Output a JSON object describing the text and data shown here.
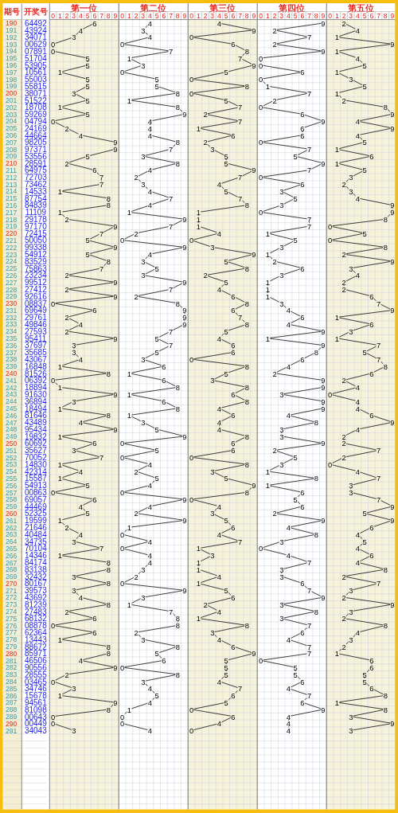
{
  "chart_data": [
    {
      "type": "line",
      "title": "第一位",
      "ylabel": "期号",
      "y2label": "开奖号",
      "orientation": "horizontal",
      "color": "#000000",
      "grid": true,
      "data_labels": true,
      "xlim": [
        -0.5,
        9.5
      ],
      "xticks": [
        0,
        1,
        2,
        3,
        4,
        5,
        6,
        7,
        8,
        9
      ],
      "categories": [
        "190",
        "191",
        "192",
        "193",
        "194",
        "195",
        "196",
        "197",
        "198",
        "199",
        "200",
        "201",
        "202",
        "203",
        "204",
        "205",
        "206",
        "207",
        "208",
        "209",
        "210",
        "211",
        "212",
        "213",
        "214",
        "215",
        "216",
        "217",
        "218",
        "219",
        "220",
        "221",
        "222",
        "223",
        "224",
        "225",
        "226",
        "227",
        "228",
        "229",
        "230",
        "231",
        "232",
        "233",
        "234",
        "235",
        "236",
        "237",
        "238",
        "239",
        "240",
        "241",
        "242",
        "243",
        "244",
        "245",
        "246",
        "247",
        "248",
        "249",
        "250",
        "251",
        "252",
        "253",
        "254",
        "255",
        "256",
        "257",
        "258",
        "259",
        "260",
        "261",
        "262",
        "263",
        "264",
        "265",
        "266",
        "267",
        "268",
        "269",
        "270",
        "271",
        "272",
        "273",
        "274",
        "275",
        "276",
        "277",
        "278",
        "279",
        "280",
        "281",
        "282",
        "283",
        "284",
        "285",
        "286",
        "287",
        "288",
        "289",
        "290",
        "291"
      ],
      "y2_categories": [
        "64492",
        "43924",
        "34071",
        "00629",
        "07891",
        "51704",
        "53905",
        "10561",
        "55003",
        "55815",
        "38071",
        "51522",
        "18708",
        "59269",
        "04794",
        "24169",
        "44664",
        "98205",
        "97371",
        "53556",
        "28591",
        "64975",
        "72703",
        "73462",
        "14533",
        "87754",
        "84839",
        "11109",
        "29178",
        "97170",
        "72415",
        "50050",
        "99338",
        "54912",
        "83529",
        "75863",
        "23234",
        "99512",
        "27412",
        "92616",
        "08837",
        "69649",
        "29761",
        "49846",
        "27593",
        "95411",
        "37697",
        "35685",
        "43067",
        "16848",
        "81526",
        "06392",
        "18894",
        "91630",
        "36894",
        "18494",
        "81646",
        "43489",
        "95434",
        "19832",
        "60692",
        "35627",
        "70052",
        "14830",
        "42314",
        "15587",
        "54913",
        "00863",
        "69057",
        "44469",
        "52325",
        "19599",
        "21646",
        "40484",
        "34735",
        "70104",
        "14346",
        "84174",
        "83138",
        "32432",
        "80167",
        "39573",
        "43692",
        "81239",
        "27483",
        "68132",
        "08878",
        "62364",
        "13443",
        "88672",
        "85971",
        "46506",
        "90556",
        "28555",
        "03465",
        "34746",
        "15678",
        "94561",
        "81098",
        "00643",
        "00449",
        "34043"
      ],
      "values": [
        6,
        4,
        3,
        0,
        0,
        5,
        5,
        1,
        5,
        5,
        3,
        5,
        1,
        5,
        0,
        2,
        4,
        9,
        9,
        5,
        2,
        6,
        7,
        7,
        1,
        8,
        8,
        1,
        2,
        9,
        7,
        5,
        9,
        5,
        8,
        7,
        2,
        9,
        2,
        9,
        0,
        6,
        2,
        4,
        2,
        9,
        3,
        3,
        4,
        1,
        8,
        0,
        1,
        9,
        3,
        1,
        8,
        4,
        9,
        1,
        6,
        3,
        7,
        1,
        4,
        1,
        5,
        0,
        6,
        4,
        5,
        1,
        2,
        4,
        3,
        7,
        1,
        8,
        8,
        3,
        8,
        3,
        4,
        8,
        2,
        6,
        0,
        6,
        1,
        8,
        8,
        4,
        9,
        2,
        0,
        3,
        1,
        9,
        8,
        0,
        0,
        3
      ]
    },
    {
      "type": "line",
      "title": "第二位",
      "orientation": "horizontal",
      "color": "#000000",
      "grid": true,
      "data_labels": true,
      "tick_labels": "x",
      "xlim": [
        -0.5,
        9.5
      ],
      "xticks": [
        0,
        1,
        2,
        3,
        4,
        5,
        6,
        7,
        8,
        9
      ],
      "values": [
        4,
        3,
        4,
        0,
        7,
        1,
        3,
        0,
        5,
        5,
        8,
        1,
        8,
        9,
        4,
        4,
        4,
        8,
        7,
        3,
        8,
        4,
        2,
        3,
        4,
        7,
        4,
        1,
        9,
        7,
        2,
        0,
        9,
        4,
        3,
        5,
        3,
        9,
        7,
        2,
        8,
        9,
        9,
        9,
        7,
        5,
        7,
        5,
        3,
        6,
        1,
        6,
        8,
        1,
        6,
        8,
        1,
        3,
        5,
        9,
        0,
        5,
        0,
        4,
        2,
        5,
        4,
        0,
        9,
        4,
        2,
        9,
        1,
        0,
        4,
        0,
        4,
        4,
        3,
        2,
        0,
        9,
        3,
        1,
        7,
        8,
        8,
        2,
        3,
        8,
        5,
        6,
        0,
        8,
        3,
        4,
        5,
        4,
        1,
        0,
        0,
        4
      ]
    },
    {
      "type": "line",
      "title": "第三位",
      "orientation": "horizontal",
      "color": "#000000",
      "grid": true,
      "data_labels": true,
      "tick_labels": "x",
      "xlim": [
        -0.5,
        9.5
      ],
      "xticks": [
        0,
        1,
        2,
        3,
        4,
        5,
        6,
        7,
        8,
        9
      ],
      "values": [
        4,
        9,
        0,
        6,
        8,
        7,
        9,
        5,
        0,
        8,
        0,
        5,
        7,
        2,
        7,
        1,
        6,
        2,
        3,
        5,
        5,
        9,
        7,
        4,
        5,
        7,
        8,
        1,
        1,
        1,
        4,
        0,
        3,
        9,
        5,
        8,
        2,
        5,
        4,
        6,
        8,
        6,
        7,
        8,
        5,
        4,
        6,
        6,
        0,
        8,
        5,
        3,
        8,
        6,
        8,
        4,
        6,
        4,
        4,
        8,
        6,
        6,
        0,
        8,
        3,
        5,
        9,
        8,
        0,
        4,
        3,
        5,
        6,
        4,
        7,
        1,
        3,
        1,
        1,
        4,
        1,
        5,
        6,
        2,
        4,
        1,
        8,
        3,
        4,
        6,
        9,
        5,
        5,
        5,
        4,
        7,
        6,
        5,
        0,
        6,
        4,
        0
      ]
    },
    {
      "type": "line",
      "title": "第四位",
      "orientation": "horizontal",
      "color": "#000000",
      "grid": true,
      "data_labels": true,
      "tick_labels": "x",
      "xlim": [
        -0.5,
        9.5
      ],
      "xticks": [
        0,
        1,
        2,
        3,
        4,
        5,
        6,
        7,
        8,
        9
      ],
      "values": [
        9,
        2,
        7,
        2,
        9,
        0,
        0,
        6,
        0,
        1,
        7,
        2,
        0,
        6,
        9,
        6,
        6,
        0,
        7,
        5,
        9,
        7,
        0,
        6,
        3,
        5,
        3,
        0,
        7,
        7,
        1,
        5,
        3,
        1,
        2,
        6,
        3,
        1,
        1,
        1,
        3,
        4,
        6,
        4,
        9,
        1,
        9,
        8,
        6,
        4,
        2,
        9,
        9,
        3,
        9,
        9,
        4,
        8,
        3,
        3,
        9,
        2,
        5,
        3,
        1,
        8,
        1,
        6,
        5,
        6,
        2,
        9,
        4,
        8,
        3,
        0,
        4,
        7,
        3,
        3,
        6,
        7,
        9,
        3,
        8,
        3,
        7,
        6,
        4,
        7,
        7,
        0,
        5,
        5,
        6,
        4,
        7,
        6,
        9,
        4,
        4,
        4
      ]
    },
    {
      "type": "line",
      "title": "第五位",
      "orientation": "horizontal",
      "color": "#000000",
      "grid": true,
      "data_labels": true,
      "tick_labels": "x",
      "xlim": [
        -0.5,
        9.5
      ],
      "xticks": [
        0,
        1,
        2,
        3,
        4,
        5,
        6,
        7,
        8,
        9
      ],
      "values": [
        2,
        4,
        1,
        9,
        1,
        4,
        5,
        1,
        3,
        5,
        1,
        2,
        8,
        9,
        4,
        9,
        4,
        5,
        1,
        6,
        1,
        5,
        3,
        2,
        3,
        4,
        9,
        9,
        8,
        0,
        5,
        0,
        8,
        2,
        9,
        3,
        4,
        2,
        2,
        6,
        7,
        9,
        1,
        6,
        3,
        1,
        7,
        5,
        7,
        8,
        6,
        2,
        4,
        0,
        4,
        4,
        6,
        9,
        4,
        2,
        2,
        7,
        2,
        0,
        4,
        7,
        3,
        3,
        7,
        9,
        5,
        9,
        6,
        4,
        5,
        4,
        6,
        4,
        8,
        2,
        7,
        3,
        2,
        9,
        3,
        2,
        8,
        4,
        3,
        2,
        1,
        6,
        6,
        5,
        5,
        6,
        8,
        1,
        8,
        3,
        9,
        3
      ]
    }
  ]
}
